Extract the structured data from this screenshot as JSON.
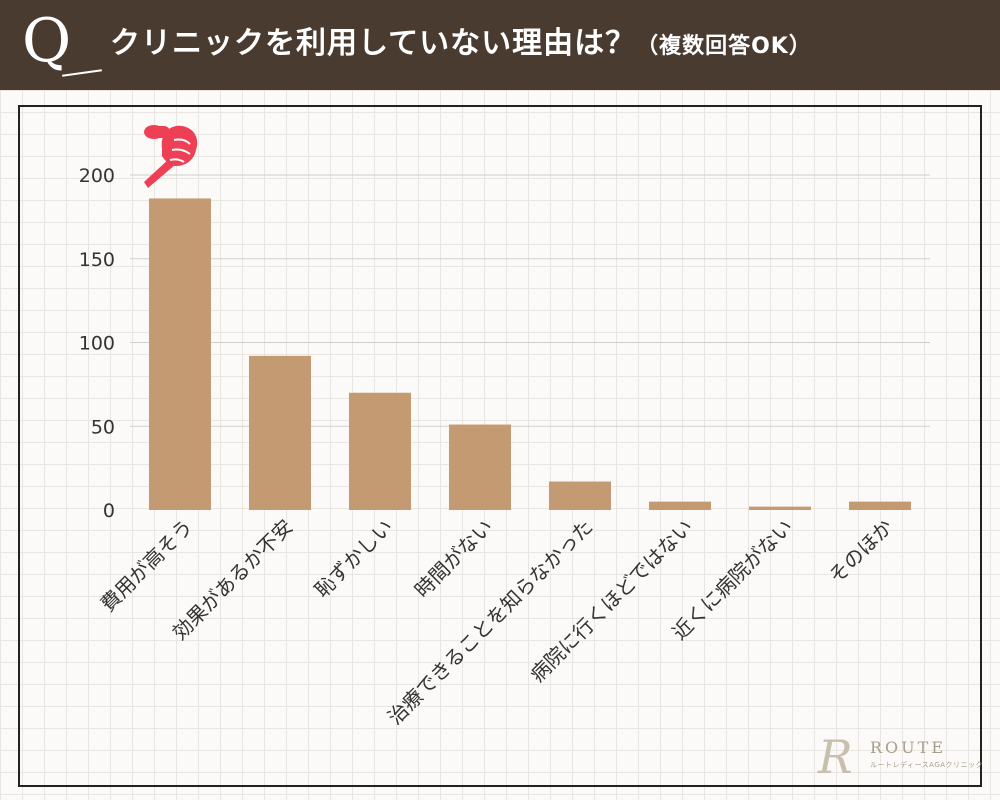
{
  "header": {
    "q_mark": "Q",
    "title": "クリニックを利用していない理由は？",
    "subtitle": "（複数回答OK）"
  },
  "logo": {
    "mark": "R",
    "name": "ROUTE",
    "tagline": "ルートレディースAGAクリニック"
  },
  "colors": {
    "header_bg": "#4a3b30",
    "bar": "#c39a72",
    "pointer": "#ee4055",
    "gridline": "#cfcfcf"
  },
  "pointer_icon": "pointing-hand-icon",
  "chart_data": {
    "type": "bar",
    "categories": [
      "費用が高そう",
      "効果があるか不安",
      "恥ずかしい",
      "時間がない",
      "治療できることを知らなかった",
      "病院に行くほどではない",
      "近くに病院がない",
      "そのほか"
    ],
    "values": [
      186,
      92,
      70,
      51,
      17,
      5,
      2,
      5
    ],
    "ylim": [
      0,
      200
    ],
    "yticks": [
      0,
      50,
      100,
      150,
      200
    ],
    "grid": true,
    "highlight_index": 0
  }
}
